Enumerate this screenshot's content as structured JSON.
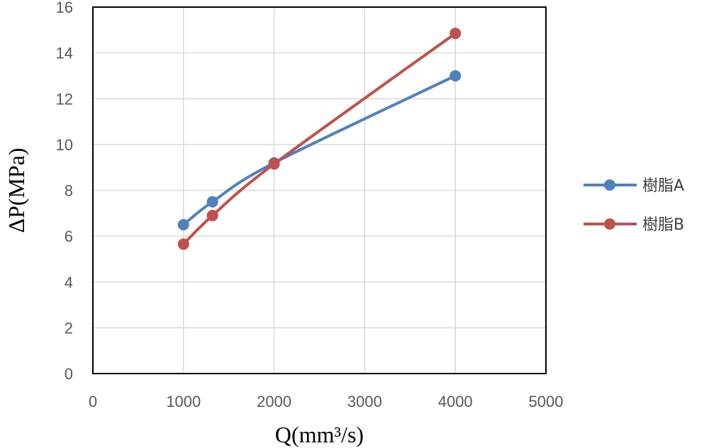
{
  "chart_data": {
    "type": "line",
    "xlabel": "Q(mm³/s)",
    "ylabel": "ΔP(MPa)",
    "xlim": [
      0,
      5000
    ],
    "ylim": [
      0,
      16
    ],
    "x_ticks": [
      0,
      1000,
      2000,
      3000,
      4000,
      5000
    ],
    "y_ticks": [
      0,
      2,
      4,
      6,
      8,
      10,
      12,
      14,
      16
    ],
    "grid": true,
    "legend_position": "right",
    "series": [
      {
        "name": "樹脂A",
        "color": "#4f81bd",
        "x": [
          1000,
          1320,
          2000,
          4000
        ],
        "y": [
          6.5,
          7.5,
          9.2,
          13.0
        ]
      },
      {
        "name": "樹脂B",
        "color": "#c0504d",
        "x": [
          1000,
          1320,
          2000,
          4000
        ],
        "y": [
          5.65,
          6.9,
          9.15,
          14.85
        ]
      }
    ]
  }
}
